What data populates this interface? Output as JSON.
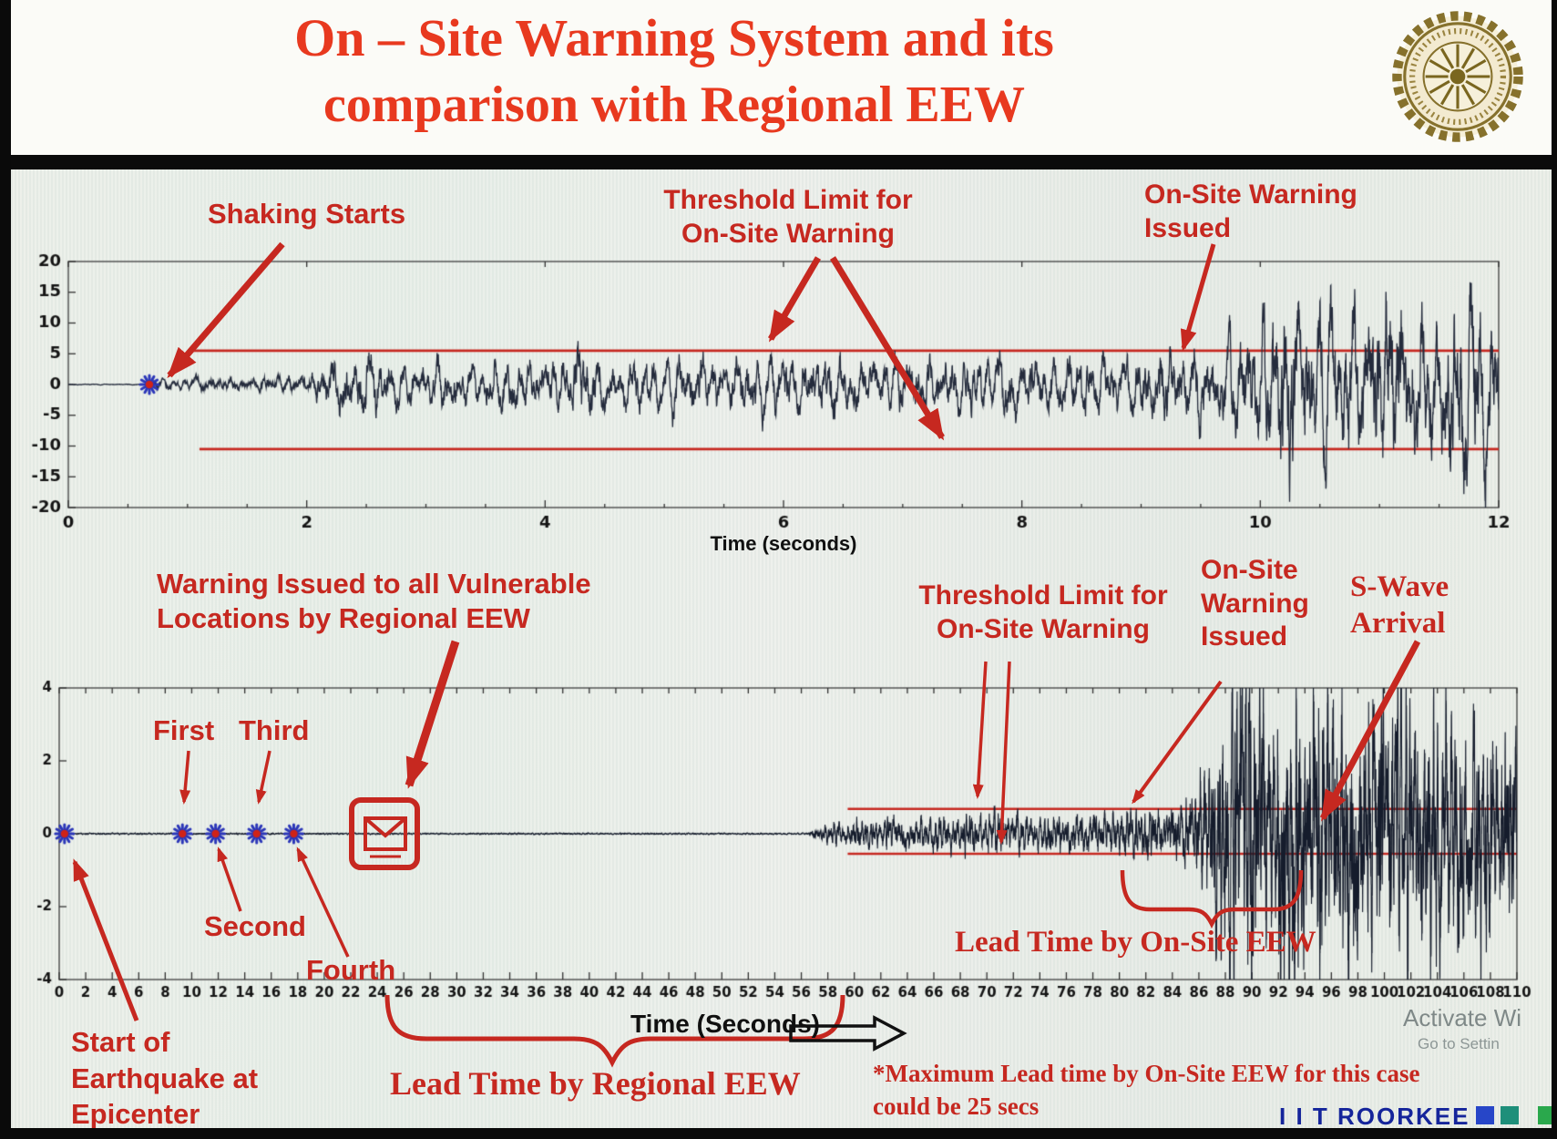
{
  "title": {
    "line1": "On – Site Warning System and its",
    "line2": "comparison with Regional EEW"
  },
  "annotations_top": {
    "shaking_starts": "Shaking Starts",
    "threshold_limit": "Threshold Limit for\nOn-Site Warning",
    "warning_issued": "On-Site Warning\nIssued"
  },
  "annotations_bottom": {
    "regional_warning": "Warning Issued to all Vulnerable\nLocations by Regional EEW",
    "first": "First",
    "second": "Second",
    "third": "Third",
    "fourth": "Fourth",
    "threshold_limit": "Threshold Limit for\nOn-Site Warning",
    "onsite_warning": "On-Site\nWarning\nIssued",
    "swave": "S-Wave\nArrival",
    "lead_onsite": "Lead Time by On-Site EEW",
    "lead_regional": "Lead Time by Regional EEW",
    "max_lead_note": "*Maximum Lead time by On-Site EEW for this case\ncould be 25 secs",
    "start_epicenter": "Start of\nEarthquake at\nEpicenter",
    "xlabel": "Time (Seconds)"
  },
  "footer": {
    "brand": "I I T ROORKEE",
    "squares": [
      "#2746c8",
      "#1e8f7a"
    ],
    "corner_square": "#2aa84c",
    "watermark_line1": "Activate Wi",
    "watermark_line2": "Go to Settin"
  },
  "colors": {
    "red": "#c62820",
    "title_red": "#e8391f",
    "ink": "#1c2333",
    "brand_blue": "#15259b"
  },
  "chart_data": [
    {
      "id": "top-seismogram",
      "type": "line",
      "title": "",
      "xlabel": "Time (seconds)",
      "ylabel": "",
      "xlim": [
        0,
        12
      ],
      "xticks": [
        0,
        2,
        4,
        6,
        8,
        10,
        12
      ],
      "minor_x_step": 0.5,
      "ylim": [
        -20,
        20
      ],
      "yticks": [
        20,
        15,
        10,
        5,
        0,
        -5,
        -10,
        -15,
        -20
      ],
      "grid": false,
      "tick_font": 18,
      "line_color": "#242b3c",
      "line_width": 1.3,
      "threshold_color": "#c62820",
      "threshold_lines": [
        {
          "y": 5.5,
          "x_start": 1.05,
          "x_end": 12
        },
        {
          "y": -10.5,
          "x_start": 1.1,
          "x_end": 12
        }
      ],
      "event_markers": [
        {
          "x": 0.68,
          "y": 0,
          "label": "shaking-start"
        }
      ],
      "signal_start": 0.68,
      "freqs": [
        10.4,
        6.8,
        14.3
      ],
      "jitter": 0.9,
      "samples": 6000,
      "seed": 7,
      "envelope": [
        [
          0.0,
          0.05
        ],
        [
          0.66,
          0.05
        ],
        [
          0.75,
          0.8
        ],
        [
          0.9,
          0.5
        ],
        [
          1.1,
          0.9
        ],
        [
          1.4,
          0.7
        ],
        [
          1.7,
          1.1
        ],
        [
          2.0,
          1.0
        ],
        [
          2.2,
          3.6
        ],
        [
          2.5,
          4.2
        ],
        [
          2.8,
          2.6
        ],
        [
          3.1,
          3.2
        ],
        [
          3.4,
          2.4
        ],
        [
          3.7,
          3.8
        ],
        [
          4.0,
          3.0
        ],
        [
          4.3,
          4.4
        ],
        [
          4.6,
          2.8
        ],
        [
          4.9,
          3.4
        ],
        [
          5.2,
          4.0
        ],
        [
          5.5,
          3.0
        ],
        [
          5.8,
          4.2
        ],
        [
          6.1,
          3.4
        ],
        [
          6.4,
          4.6
        ],
        [
          6.7,
          3.2
        ],
        [
          7.0,
          4.0
        ],
        [
          7.3,
          3.0
        ],
        [
          7.6,
          3.6
        ],
        [
          7.9,
          4.2
        ],
        [
          8.2,
          3.2
        ],
        [
          8.5,
          4.0
        ],
        [
          8.8,
          3.4
        ],
        [
          9.1,
          4.4
        ],
        [
          9.35,
          5.2
        ],
        [
          9.6,
          4.6
        ],
        [
          9.85,
          6.5
        ],
        [
          10.05,
          9.0
        ],
        [
          10.25,
          13.5
        ],
        [
          10.45,
          9.5
        ],
        [
          10.65,
          13.0
        ],
        [
          10.85,
          8.0
        ],
        [
          11.05,
          15.0
        ],
        [
          11.25,
          10.0
        ],
        [
          11.45,
          8.0
        ],
        [
          11.65,
          14.5
        ],
        [
          11.85,
          12.0
        ],
        [
          12.0,
          10.5
        ]
      ]
    },
    {
      "id": "bottom-seismogram",
      "type": "line",
      "title": "",
      "xlabel": "Time (Seconds)",
      "ylabel": "",
      "xlim": [
        0,
        110
      ],
      "xticks": [
        0,
        2,
        4,
        6,
        8,
        10,
        12,
        14,
        16,
        18,
        20,
        22,
        24,
        26,
        28,
        30,
        32,
        34,
        36,
        38,
        40,
        42,
        44,
        46,
        48,
        50,
        52,
        54,
        56,
        58,
        60,
        62,
        64,
        66,
        68,
        70,
        72,
        74,
        76,
        78,
        80,
        82,
        84,
        86,
        88,
        90,
        92,
        94,
        96,
        98,
        100,
        102,
        104,
        106,
        108,
        110
      ],
      "ylim": [
        -4,
        4
      ],
      "yticks": [
        4,
        2,
        0,
        -2,
        -4
      ],
      "grid": false,
      "tick_font": 15,
      "line_color": "#151c2c",
      "line_width": 1.1,
      "threshold_color": "#c62820",
      "threshold_lines": [
        {
          "y": 0.68,
          "x_start": 59.5,
          "x_end": 110
        },
        {
          "y": -0.55,
          "x_start": 59.5,
          "x_end": 110
        }
      ],
      "event_markers": [
        {
          "x": 0.4,
          "y": 0,
          "label": "epicenter"
        },
        {
          "x": 9.3,
          "y": 0,
          "label": "first"
        },
        {
          "x": 11.8,
          "y": 0,
          "label": "second"
        },
        {
          "x": 14.9,
          "y": 0,
          "label": "third"
        },
        {
          "x": 17.7,
          "y": 0,
          "label": "fourth"
        }
      ],
      "signal_start": 57.0,
      "freqs": [
        2.9,
        4.7,
        7.4
      ],
      "jitter": 1.1,
      "samples": 14000,
      "seed": 42,
      "envelope": [
        [
          0,
          0.012
        ],
        [
          56.5,
          0.012
        ],
        [
          57.5,
          0.1
        ],
        [
          58.5,
          0.22
        ],
        [
          59.5,
          0.16
        ],
        [
          60.5,
          0.28
        ],
        [
          61.5,
          0.2
        ],
        [
          62.5,
          0.3
        ],
        [
          63.5,
          0.24
        ],
        [
          64.5,
          0.34
        ],
        [
          65.5,
          0.26
        ],
        [
          66.5,
          0.32
        ],
        [
          67.5,
          0.26
        ],
        [
          68.5,
          0.36
        ],
        [
          69.5,
          0.3
        ],
        [
          70.5,
          0.38
        ],
        [
          71.5,
          0.3
        ],
        [
          72.5,
          0.36
        ],
        [
          73.5,
          0.28
        ],
        [
          74.5,
          0.36
        ],
        [
          75.5,
          0.3
        ],
        [
          76.5,
          0.38
        ],
        [
          77.5,
          0.32
        ],
        [
          78.5,
          0.4
        ],
        [
          79.5,
          0.34
        ],
        [
          80.5,
          0.46
        ],
        [
          81.5,
          0.4
        ],
        [
          82.5,
          0.5
        ],
        [
          83.5,
          0.44
        ],
        [
          84.5,
          0.56
        ],
        [
          85.5,
          0.7
        ],
        [
          86.5,
          1.1
        ],
        [
          87.5,
          1.9
        ],
        [
          88.5,
          2.6
        ],
        [
          89.5,
          3.2
        ],
        [
          90.5,
          2.6
        ],
        [
          91.5,
          2.2
        ],
        [
          92.5,
          2.9
        ],
        [
          93.5,
          3.1
        ],
        [
          94.5,
          2.5
        ],
        [
          95.5,
          2.9
        ],
        [
          96.5,
          2.4
        ],
        [
          97.5,
          2.8
        ],
        [
          98.5,
          2.5
        ],
        [
          99.5,
          2.7
        ],
        [
          100.5,
          2.3
        ],
        [
          101.5,
          2.6
        ],
        [
          102.5,
          2.2
        ],
        [
          103.5,
          2.4
        ],
        [
          104.5,
          2.1
        ],
        [
          105.5,
          2.3
        ],
        [
          106.5,
          2.0
        ],
        [
          107.5,
          2.2
        ],
        [
          108.5,
          1.9
        ],
        [
          109.5,
          2.0
        ],
        [
          110,
          1.9
        ]
      ]
    }
  ]
}
